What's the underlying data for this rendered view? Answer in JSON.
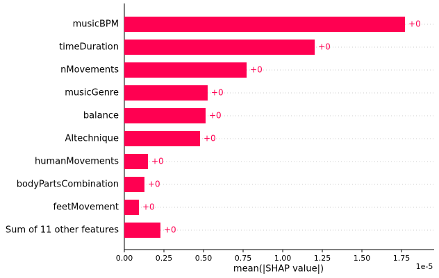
{
  "chart_data": {
    "type": "barh",
    "categories": [
      "musicBPM",
      "timeDuration",
      "nMovements",
      "musicGenre",
      "balance",
      "AItechnique",
      "humanMovements",
      "bodyPartsCombination",
      "feetMovement",
      "Sum of 11 other features"
    ],
    "values": [
      1.772e-05,
      1.202e-05,
      7.72e-06,
      5.26e-06,
      5.13e-06,
      4.78e-06,
      1.49e-06,
      1.27e-06,
      9.2e-07,
      2.28e-06
    ],
    "value_labels": [
      "+0",
      "+0",
      "+0",
      "+0",
      "+0",
      "+0",
      "+0",
      "+0",
      "+0",
      "+0"
    ],
    "color": "#ff0051",
    "xlabel": "mean(|SHAP value|)",
    "x_offset_label": "1e-5",
    "xlim": [
      0,
      1.956e-05
    ],
    "xticks": [
      {
        "value": 0,
        "label": "0.00"
      },
      {
        "value": 2.5e-06,
        "label": "0.25"
      },
      {
        "value": 5e-06,
        "label": "0.50"
      },
      {
        "value": 7.5e-06,
        "label": "0.75"
      },
      {
        "value": 1e-05,
        "label": "1.00"
      },
      {
        "value": 1.25e-05,
        "label": "1.25"
      },
      {
        "value": 1.5e-05,
        "label": "1.50"
      },
      {
        "value": 1.75e-05,
        "label": "1.75"
      }
    ]
  }
}
